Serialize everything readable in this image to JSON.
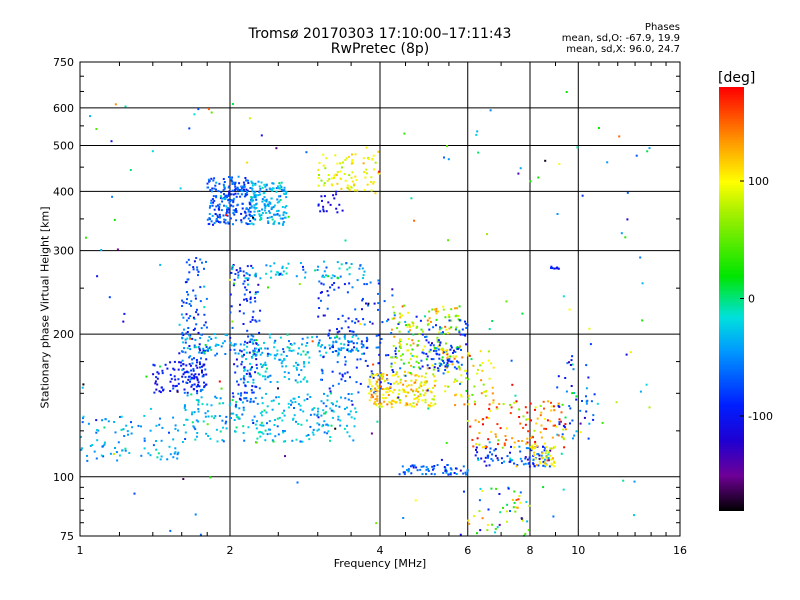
{
  "header": {
    "title_line1": "Tromsø 20170303 17:10:00–17:11:43",
    "title_line2": "RwPretec (8p)",
    "phases_title": "Phases",
    "stats_O": "mean, sd,O: -67.9, 19.9",
    "stats_X": "mean, sd,X:  96.0, 24.7"
  },
  "colorbar": {
    "unit": "[deg]",
    "tick_labels": [
      "100",
      "0",
      "-100"
    ],
    "tick_values": [
      100,
      0,
      -100
    ],
    "range": [
      -180,
      180
    ]
  },
  "chart_data": {
    "type": "scatter",
    "xlabel": "Frequency [MHz]",
    "ylabel": "Stationary phase Virtual Height [km]",
    "xscale": "log",
    "yscale": "log",
    "xlim": [
      1,
      16
    ],
    "ylim": [
      75,
      750
    ],
    "xticks": [
      1,
      2,
      4,
      6,
      8,
      10,
      16
    ],
    "xtick_labels": [
      "1",
      "2",
      "4",
      "6",
      "8",
      "10",
      "16"
    ],
    "yticks": [
      75,
      100,
      200,
      300,
      400,
      500,
      600,
      750
    ],
    "ytick_labels": [
      "75",
      "100",
      "200",
      "300",
      "400",
      "500",
      "600",
      "750"
    ],
    "grid": true,
    "color_variable": "phase [deg]",
    "clusters": [
      {
        "f_range": [
          1.0,
          1.6
        ],
        "h_range": [
          108,
          135
        ],
        "n": 90,
        "phase_mean": -40,
        "phase_sd": 15
      },
      {
        "f_range": [
          1.6,
          3.6
        ],
        "h_range": [
          118,
          150
        ],
        "n": 260,
        "phase_mean": -30,
        "phase_sd": 18
      },
      {
        "f_range": [
          1.4,
          1.8
        ],
        "h_range": [
          150,
          175
        ],
        "n": 90,
        "phase_mean": -100,
        "phase_sd": 12
      },
      {
        "f_range": [
          1.6,
          1.8
        ],
        "h_range": [
          150,
          290
        ],
        "n": 120,
        "phase_mean": -75,
        "phase_sd": 20
      },
      {
        "f_range": [
          2.1,
          2.9
        ],
        "h_range": [
          158,
          182
        ],
        "n": 80,
        "phase_mean": -30,
        "phase_sd": 15
      },
      {
        "f_range": [
          2.0,
          2.3
        ],
        "h_range": [
          140,
          280
        ],
        "n": 120,
        "phase_mean": -85,
        "phase_sd": 20
      },
      {
        "f_range": [
          1.6,
          3.8
        ],
        "h_range": [
          180,
          200
        ],
        "n": 160,
        "phase_mean": -35,
        "phase_sd": 20
      },
      {
        "f_range": [
          2.0,
          3.8
        ],
        "h_range": [
          262,
          285
        ],
        "n": 70,
        "phase_mean": -30,
        "phase_sd": 22
      },
      {
        "f_range": [
          1.8,
          2.2
        ],
        "h_range": [
          340,
          430
        ],
        "n": 220,
        "phase_mean": -70,
        "phase_sd": 18
      },
      {
        "f_range": [
          2.2,
          2.6
        ],
        "h_range": [
          340,
          420
        ],
        "n": 170,
        "phase_mean": -35,
        "phase_sd": 15
      },
      {
        "f_range": [
          3.0,
          3.6
        ],
        "h_range": [
          400,
          480
        ],
        "n": 60,
        "phase_mean": 95,
        "phase_sd": 15
      },
      {
        "f_range": [
          3.0,
          3.4
        ],
        "h_range": [
          360,
          400
        ],
        "n": 20,
        "phase_mean": -105,
        "phase_sd": 10
      },
      {
        "f_range": [
          3.7,
          4.0
        ],
        "h_range": [
          390,
          500
        ],
        "n": 25,
        "phase_mean": 95,
        "phase_sd": 15
      },
      {
        "f_range": [
          3.0,
          4.4
        ],
        "h_range": [
          150,
          260
        ],
        "n": 160,
        "phase_mean": -80,
        "phase_sd": 20
      },
      {
        "f_range": [
          3.8,
          5.2
        ],
        "h_range": [
          140,
          165
        ],
        "n": 180,
        "phase_mean": 110,
        "phase_sd": 20
      },
      {
        "f_range": [
          4.2,
          5.8
        ],
        "h_range": [
          165,
          230
        ],
        "n": 160,
        "phase_mean": 85,
        "phase_sd": 40
      },
      {
        "f_range": [
          4.8,
          6.0
        ],
        "h_range": [
          165,
          215
        ],
        "n": 90,
        "phase_mean": -85,
        "phase_sd": 20
      },
      {
        "f_range": [
          5.4,
          6.8
        ],
        "h_range": [
          140,
          185
        ],
        "n": 60,
        "phase_mean": 100,
        "phase_sd": 25
      },
      {
        "f_range": [
          4.3,
          6.0
        ],
        "h_range": [
          101,
          106
        ],
        "n": 60,
        "phase_mean": -70,
        "phase_sd": 20
      },
      {
        "f_range": [
          6.2,
          8.8
        ],
        "h_range": [
          105,
          116
        ],
        "n": 90,
        "phase_mean": -75,
        "phase_sd": 30
      },
      {
        "f_range": [
          8.0,
          9.0
        ],
        "h_range": [
          105,
          118
        ],
        "n": 40,
        "phase_mean": 100,
        "phase_sd": 20
      },
      {
        "f_range": [
          6.0,
          9.5
        ],
        "h_range": [
          115,
          145
        ],
        "n": 110,
        "phase_mean": 140,
        "phase_sd": 40
      },
      {
        "f_range": [
          9.0,
          11.0
        ],
        "h_range": [
          120,
          180
        ],
        "n": 50,
        "phase_mean": -70,
        "phase_sd": 40
      },
      {
        "f_range": [
          8.8,
          9.2
        ],
        "h_range": [
          273,
          278
        ],
        "n": 8,
        "phase_mean": -90,
        "phase_sd": 10
      },
      {
        "f_range": [
          5.8,
          8.0
        ],
        "h_range": [
          75,
          95
        ],
        "n": 50,
        "phase_mean": 30,
        "phase_sd": 80
      },
      {
        "f_range": [
          1.0,
          15.0
        ],
        "h_range": [
          75,
          650
        ],
        "n": 180,
        "phase_mean": 0,
        "phase_sd": 90
      }
    ]
  }
}
